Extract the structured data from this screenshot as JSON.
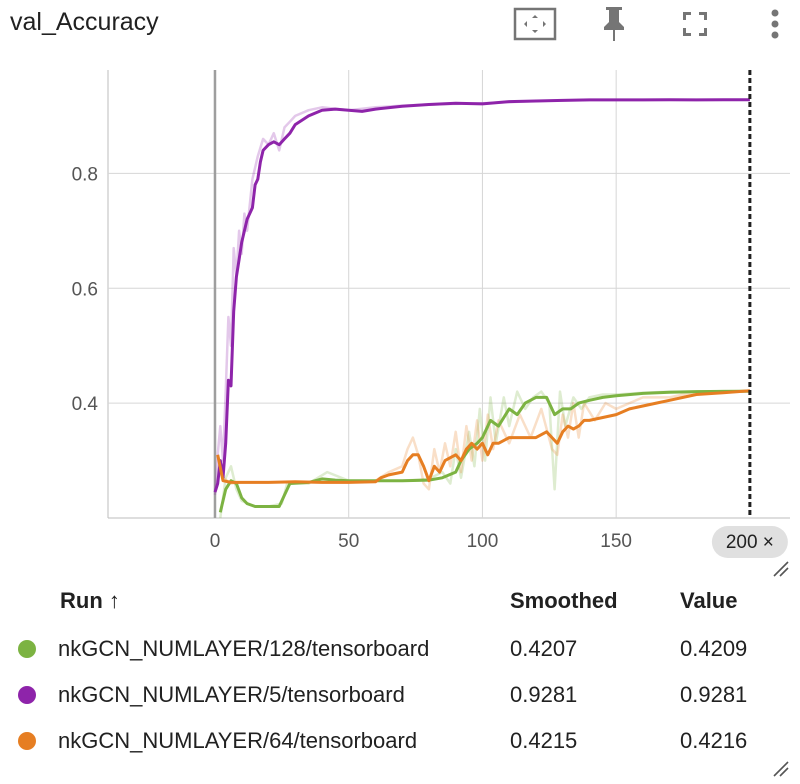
{
  "header": {
    "title": "val_Accuracy",
    "fit_icon": "fit-domain-icon",
    "pin_icon": "pin-icon",
    "fullscreen_icon": "fullscreen-icon",
    "menu_icon": "more-vert-icon"
  },
  "chart_data": {
    "type": "line",
    "title": "val_Accuracy",
    "xlim": [
      -40,
      215
    ],
    "ylim": [
      0.2,
      0.98
    ],
    "x_ticks": [
      0,
      50,
      100,
      150
    ],
    "x_tick_labels": [
      "0",
      "50",
      "100",
      "150"
    ],
    "y_ticks": [
      0.4,
      0.6,
      0.8
    ],
    "y_tick_labels": [
      "0.4",
      "0.6",
      "0.8"
    ],
    "grid": true,
    "cursor_step": 200,
    "cursor_label": "200 ×",
    "series": [
      {
        "name": "nkGCN_NUMLAYER/128/tensorboard",
        "color": "#7cb342",
        "smoothed": [
          [
            2,
            0.21
          ],
          [
            4,
            0.25
          ],
          [
            6,
            0.265
          ],
          [
            8,
            0.26
          ],
          [
            10,
            0.235
          ],
          [
            12,
            0.225
          ],
          [
            15,
            0.22
          ],
          [
            20,
            0.22
          ],
          [
            24,
            0.22
          ],
          [
            26,
            0.24
          ],
          [
            28,
            0.26
          ],
          [
            35,
            0.262
          ],
          [
            40,
            0.268
          ],
          [
            45,
            0.266
          ],
          [
            50,
            0.265
          ],
          [
            60,
            0.265
          ],
          [
            70,
            0.265
          ],
          [
            80,
            0.266
          ],
          [
            85,
            0.27
          ],
          [
            90,
            0.28
          ],
          [
            92,
            0.3
          ],
          [
            95,
            0.32
          ],
          [
            98,
            0.33
          ],
          [
            100,
            0.34
          ],
          [
            103,
            0.37
          ],
          [
            106,
            0.36
          ],
          [
            110,
            0.39
          ],
          [
            113,
            0.38
          ],
          [
            116,
            0.4
          ],
          [
            120,
            0.41
          ],
          [
            124,
            0.41
          ],
          [
            127,
            0.38
          ],
          [
            130,
            0.39
          ],
          [
            133,
            0.39
          ],
          [
            136,
            0.4
          ],
          [
            140,
            0.405
          ],
          [
            145,
            0.41
          ],
          [
            150,
            0.413
          ],
          [
            160,
            0.417
          ],
          [
            170,
            0.419
          ],
          [
            180,
            0.42
          ],
          [
            190,
            0.4205
          ],
          [
            200,
            0.4207
          ]
        ],
        "raw": [
          [
            2,
            0.2
          ],
          [
            4,
            0.27
          ],
          [
            6,
            0.29
          ],
          [
            8,
            0.25
          ],
          [
            10,
            0.23
          ],
          [
            15,
            0.22
          ],
          [
            20,
            0.22
          ],
          [
            25,
            0.225
          ],
          [
            27,
            0.26
          ],
          [
            35,
            0.26
          ],
          [
            42,
            0.28
          ],
          [
            50,
            0.265
          ],
          [
            70,
            0.265
          ],
          [
            80,
            0.268
          ],
          [
            85,
            0.28
          ],
          [
            88,
            0.26
          ],
          [
            90,
            0.32
          ],
          [
            92,
            0.27
          ],
          [
            95,
            0.35
          ],
          [
            97,
            0.29
          ],
          [
            99,
            0.39
          ],
          [
            101,
            0.3
          ],
          [
            103,
            0.41
          ],
          [
            105,
            0.33
          ],
          [
            108,
            0.41
          ],
          [
            110,
            0.36
          ],
          [
            113,
            0.42
          ],
          [
            116,
            0.39
          ],
          [
            119,
            0.41
          ],
          [
            122,
            0.42
          ],
          [
            125,
            0.4
          ],
          [
            127,
            0.25
          ],
          [
            129,
            0.42
          ],
          [
            131,
            0.36
          ],
          [
            134,
            0.41
          ],
          [
            137,
            0.39
          ],
          [
            140,
            0.41
          ],
          [
            145,
            0.415
          ],
          [
            150,
            0.415
          ],
          [
            160,
            0.418
          ],
          [
            170,
            0.42
          ],
          [
            180,
            0.42
          ],
          [
            190,
            0.421
          ],
          [
            200,
            0.4209
          ]
        ],
        "smoothed_last": "0.4207",
        "value_last": "0.4209"
      },
      {
        "name": "nkGCN_NUMLAYER/5/tensorboard",
        "color": "#8e24aa",
        "smoothed": [
          [
            0,
            0.245
          ],
          [
            1,
            0.26
          ],
          [
            2,
            0.3
          ],
          [
            3,
            0.27
          ],
          [
            4,
            0.33
          ],
          [
            5,
            0.44
          ],
          [
            6,
            0.43
          ],
          [
            7,
            0.56
          ],
          [
            8,
            0.62
          ],
          [
            9,
            0.65
          ],
          [
            10,
            0.68
          ],
          [
            11,
            0.7
          ],
          [
            12,
            0.72
          ],
          [
            13,
            0.73
          ],
          [
            14,
            0.74
          ],
          [
            15,
            0.78
          ],
          [
            16,
            0.79
          ],
          [
            17,
            0.82
          ],
          [
            18,
            0.84
          ],
          [
            20,
            0.85
          ],
          [
            22,
            0.855
          ],
          [
            24,
            0.85
          ],
          [
            26,
            0.86
          ],
          [
            28,
            0.87
          ],
          [
            30,
            0.885
          ],
          [
            35,
            0.9
          ],
          [
            40,
            0.91
          ],
          [
            45,
            0.912
          ],
          [
            50,
            0.91
          ],
          [
            55,
            0.908
          ],
          [
            60,
            0.912
          ],
          [
            70,
            0.917
          ],
          [
            80,
            0.92
          ],
          [
            90,
            0.922
          ],
          [
            100,
            0.921
          ],
          [
            110,
            0.925
          ],
          [
            120,
            0.926
          ],
          [
            130,
            0.927
          ],
          [
            140,
            0.928
          ],
          [
            150,
            0.928
          ],
          [
            160,
            0.928
          ],
          [
            170,
            0.9282
          ],
          [
            180,
            0.928
          ],
          [
            190,
            0.9281
          ],
          [
            200,
            0.9281
          ]
        ],
        "raw": [
          [
            0,
            0.24
          ],
          [
            1,
            0.31
          ],
          [
            2,
            0.36
          ],
          [
            3,
            0.3
          ],
          [
            4,
            0.42
          ],
          [
            5,
            0.55
          ],
          [
            6,
            0.5
          ],
          [
            7,
            0.67
          ],
          [
            8,
            0.62
          ],
          [
            9,
            0.7
          ],
          [
            10,
            0.66
          ],
          [
            11,
            0.73
          ],
          [
            12,
            0.7
          ],
          [
            14,
            0.79
          ],
          [
            16,
            0.83
          ],
          [
            18,
            0.86
          ],
          [
            20,
            0.85
          ],
          [
            22,
            0.87
          ],
          [
            24,
            0.84
          ],
          [
            26,
            0.88
          ],
          [
            28,
            0.89
          ],
          [
            30,
            0.9
          ],
          [
            35,
            0.91
          ],
          [
            40,
            0.915
          ],
          [
            50,
            0.91
          ],
          [
            60,
            0.915
          ],
          [
            70,
            0.918
          ],
          [
            80,
            0.92
          ],
          [
            100,
            0.922
          ],
          [
            120,
            0.926
          ],
          [
            140,
            0.928
          ],
          [
            160,
            0.928
          ],
          [
            180,
            0.928
          ],
          [
            200,
            0.9281
          ]
        ],
        "smoothed_last": "0.9281",
        "value_last": "0.9281"
      },
      {
        "name": "nkGCN_NUMLAYER/64/tensorboard",
        "color": "#e67e22",
        "smoothed": [
          [
            1,
            0.31
          ],
          [
            3,
            0.265
          ],
          [
            6,
            0.262
          ],
          [
            10,
            0.262
          ],
          [
            20,
            0.262
          ],
          [
            30,
            0.263
          ],
          [
            40,
            0.262
          ],
          [
            50,
            0.262
          ],
          [
            60,
            0.263
          ],
          [
            62,
            0.27
          ],
          [
            65,
            0.275
          ],
          [
            70,
            0.28
          ],
          [
            72,
            0.3
          ],
          [
            74,
            0.31
          ],
          [
            76,
            0.31
          ],
          [
            78,
            0.29
          ],
          [
            80,
            0.265
          ],
          [
            82,
            0.29
          ],
          [
            84,
            0.28
          ],
          [
            86,
            0.3
          ],
          [
            88,
            0.305
          ],
          [
            90,
            0.31
          ],
          [
            92,
            0.3
          ],
          [
            94,
            0.32
          ],
          [
            96,
            0.33
          ],
          [
            98,
            0.32
          ],
          [
            100,
            0.33
          ],
          [
            102,
            0.31
          ],
          [
            104,
            0.33
          ],
          [
            106,
            0.33
          ],
          [
            110,
            0.34
          ],
          [
            115,
            0.34
          ],
          [
            120,
            0.34
          ],
          [
            124,
            0.35
          ],
          [
            126,
            0.34
          ],
          [
            128,
            0.33
          ],
          [
            130,
            0.35
          ],
          [
            132,
            0.36
          ],
          [
            134,
            0.355
          ],
          [
            136,
            0.36
          ],
          [
            138,
            0.37
          ],
          [
            140,
            0.37
          ],
          [
            145,
            0.375
          ],
          [
            150,
            0.38
          ],
          [
            155,
            0.39
          ],
          [
            160,
            0.395
          ],
          [
            165,
            0.4
          ],
          [
            170,
            0.405
          ],
          [
            175,
            0.41
          ],
          [
            180,
            0.415
          ],
          [
            190,
            0.418
          ],
          [
            200,
            0.4215
          ]
        ],
        "raw": [
          [
            1,
            0.31
          ],
          [
            3,
            0.27
          ],
          [
            6,
            0.26
          ],
          [
            10,
            0.262
          ],
          [
            30,
            0.262
          ],
          [
            50,
            0.262
          ],
          [
            60,
            0.265
          ],
          [
            65,
            0.28
          ],
          [
            70,
            0.29
          ],
          [
            72,
            0.32
          ],
          [
            74,
            0.34
          ],
          [
            76,
            0.31
          ],
          [
            78,
            0.26
          ],
          [
            80,
            0.25
          ],
          [
            82,
            0.32
          ],
          [
            84,
            0.28
          ],
          [
            86,
            0.33
          ],
          [
            88,
            0.29
          ],
          [
            90,
            0.35
          ],
          [
            92,
            0.28
          ],
          [
            94,
            0.36
          ],
          [
            96,
            0.3
          ],
          [
            98,
            0.37
          ],
          [
            100,
            0.3
          ],
          [
            102,
            0.38
          ],
          [
            104,
            0.32
          ],
          [
            106,
            0.37
          ],
          [
            110,
            0.33
          ],
          [
            114,
            0.38
          ],
          [
            118,
            0.34
          ],
          [
            122,
            0.39
          ],
          [
            126,
            0.32
          ],
          [
            128,
            0.31
          ],
          [
            130,
            0.38
          ],
          [
            132,
            0.34
          ],
          [
            134,
            0.4
          ],
          [
            136,
            0.34
          ],
          [
            138,
            0.4
          ],
          [
            142,
            0.37
          ],
          [
            146,
            0.4
          ],
          [
            150,
            0.39
          ],
          [
            155,
            0.4
          ],
          [
            160,
            0.41
          ],
          [
            170,
            0.41
          ],
          [
            180,
            0.42
          ],
          [
            190,
            0.42
          ],
          [
            200,
            0.4216
          ]
        ],
        "smoothed_last": "0.4215",
        "value_last": "0.4216"
      }
    ]
  },
  "runs_table": {
    "col_run": "Run ↑",
    "col_smoothed": "Smoothed",
    "col_value": "Value",
    "rows": [
      {
        "name": "nkGCN_NUMLAYER/128/tensorboard",
        "smoothed": "0.4207",
        "value": "0.4209",
        "color": "#7cb342"
      },
      {
        "name": "nkGCN_NUMLAYER/5/tensorboard",
        "smoothed": "0.9281",
        "value": "0.9281",
        "color": "#8e24aa"
      },
      {
        "name": "nkGCN_NUMLAYER/64/tensorboard",
        "smoothed": "0.4215",
        "value": "0.4216",
        "color": "#e67e22"
      }
    ]
  }
}
